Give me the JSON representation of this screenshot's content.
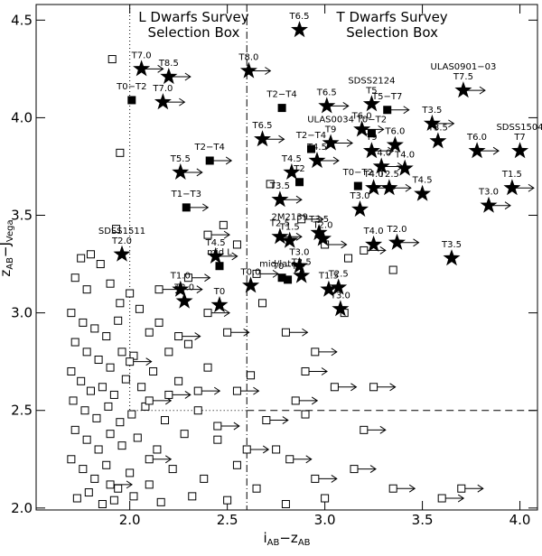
{
  "chart_data": {
    "type": "scatter",
    "xlabel": [
      "i",
      "AB",
      "−z",
      "AB"
    ],
    "ylabel": [
      "z",
      "AB",
      "−J",
      "Vega"
    ],
    "xlim": [
      1.52,
      4.09
    ],
    "ylim": [
      1.99,
      4.58
    ],
    "xticks": [
      {
        "value": 2.0,
        "label": "2.0"
      },
      {
        "value": 2.5,
        "label": "2.5"
      },
      {
        "value": 3.0,
        "label": "3.0"
      },
      {
        "value": 3.5,
        "label": "3.5"
      },
      {
        "value": 4.0,
        "label": "4.0"
      }
    ],
    "yticks": [
      {
        "value": 2.0,
        "label": "2.0"
      },
      {
        "value": 2.5,
        "label": "2.5"
      },
      {
        "value": 3.0,
        "label": "3.0"
      },
      {
        "value": 3.5,
        "label": "3.5"
      },
      {
        "value": 4.0,
        "label": "4.0"
      },
      {
        "value": 4.5,
        "label": "4.5"
      }
    ],
    "l_box": {
      "label": [
        "L Dwarfs Survey",
        "Selection Box"
      ],
      "x": 2.0,
      "y": 2.5
    },
    "t_box": {
      "label": [
        "T Dwarfs Survey",
        "Selection Box"
      ],
      "x": 2.6,
      "y": 2.5
    },
    "series": [
      {
        "marker": "open-square",
        "lower_limit": false,
        "x": [
          1.91,
          1.95,
          1.93,
          1.75,
          1.8,
          1.85,
          1.72,
          1.78,
          1.9,
          1.95,
          2.0,
          2.05,
          1.7,
          1.76,
          1.82,
          1.88,
          1.94,
          2.1,
          2.15,
          1.72,
          1.78,
          1.84,
          1.9,
          1.96,
          2.02,
          2.2,
          2.3,
          1.7,
          1.75,
          1.8,
          1.86,
          1.92,
          1.98,
          2.06,
          2.12,
          2.25,
          2.4,
          1.71,
          1.77,
          1.83,
          1.89,
          1.95,
          2.01,
          2.08,
          2.18,
          2.35,
          1.72,
          1.78,
          1.84,
          1.9,
          1.96,
          2.04,
          2.14,
          2.28,
          2.45,
          1.7,
          1.76,
          1.82,
          1.88,
          1.94,
          2.0,
          2.1,
          2.22,
          2.38,
          2.55,
          1.73,
          1.79,
          1.86,
          1.92,
          2.02,
          2.16,
          2.32,
          2.5,
          2.65,
          2.75,
          2.9,
          2.72,
          2.68,
          3.12,
          3.35,
          2.55,
          2.48,
          2.8,
          3.0,
          3.1,
          2.62
        ],
        "values": [
          4.3,
          3.82,
          3.43,
          3.28,
          3.3,
          3.25,
          3.18,
          3.12,
          3.15,
          3.05,
          3.1,
          3.02,
          3.0,
          2.95,
          2.92,
          2.88,
          2.96,
          2.9,
          2.95,
          2.85,
          2.8,
          2.76,
          2.72,
          2.8,
          2.78,
          2.8,
          2.84,
          2.7,
          2.65,
          2.6,
          2.62,
          2.58,
          2.66,
          2.62,
          2.7,
          2.65,
          2.72,
          2.55,
          2.5,
          2.46,
          2.52,
          2.44,
          2.48,
          2.52,
          2.45,
          2.5,
          2.4,
          2.35,
          2.3,
          2.38,
          2.32,
          2.36,
          2.3,
          2.38,
          2.35,
          2.25,
          2.2,
          2.15,
          2.22,
          2.1,
          2.18,
          2.12,
          2.2,
          2.15,
          2.22,
          2.05,
          2.08,
          2.02,
          2.04,
          2.06,
          2.03,
          2.06,
          2.04,
          2.1,
          2.3,
          2.48,
          3.66,
          3.05,
          3.28,
          3.22,
          3.35,
          3.45,
          2.02,
          2.05,
          3.0,
          2.68
        ]
      },
      {
        "marker": "open-square",
        "lower_limit": true,
        "x": [
          2.3,
          2.15,
          2.4,
          2.25,
          2.5,
          2.35,
          2.1,
          2.45,
          2.2,
          2.55,
          2.7,
          2.85,
          2.95,
          2.8,
          3.05,
          2.9,
          3.2,
          3.25,
          3.15,
          3.35,
          3.6,
          3.7,
          2.6,
          2.82,
          2.95,
          3.0,
          3.2,
          2.88,
          2.4,
          2.1,
          1.9,
          2.0,
          2.65
        ],
        "values": [
          3.18,
          3.12,
          3.0,
          2.88,
          2.9,
          2.6,
          2.55,
          2.42,
          2.58,
          2.6,
          2.45,
          2.55,
          2.8,
          2.9,
          2.62,
          2.7,
          2.4,
          2.62,
          2.2,
          2.1,
          2.05,
          2.1,
          2.3,
          2.25,
          2.15,
          3.35,
          3.32,
          3.48,
          3.4,
          2.25,
          2.12,
          2.75,
          3.2
        ]
      },
      {
        "marker": "filled-square",
        "lower_limit": false,
        "x": [
          2.01,
          2.78,
          3.24,
          2.93,
          3.17,
          2.87,
          2.46,
          2.78,
          2.81
        ],
        "values": [
          4.09,
          4.05,
          3.92,
          3.84,
          3.65,
          3.67,
          3.24,
          3.18,
          3.17
        ],
        "labels": [
          "T0−T2",
          "T2−T4",
          "T0−T2",
          "T2−T4",
          "T0−T2",
          "T2",
          "mid L",
          "mid/late L",
          "T0−T1"
        ]
      },
      {
        "marker": "filled-square",
        "lower_limit": true,
        "x": [
          3.32,
          2.41,
          2.29
        ],
        "values": [
          4.04,
          3.78,
          3.54
        ],
        "labels": [
          "T5−T7",
          "T2−T4",
          "T1−T3"
        ]
      },
      {
        "marker": "star",
        "lower_limit": true,
        "x": [
          2.06,
          2.2,
          2.17,
          2.61,
          3.71,
          3.01,
          3.55,
          2.68,
          3.03,
          3.19,
          3.24,
          3.78,
          2.26,
          2.96,
          3.29,
          3.25,
          3.33,
          3.96,
          3.84,
          2.77,
          2.77,
          3.37,
          2.44,
          2.26
        ],
        "values": [
          4.25,
          4.21,
          4.08,
          4.24,
          4.14,
          4.06,
          3.97,
          3.89,
          3.87,
          3.94,
          3.83,
          3.83,
          3.72,
          3.78,
          3.75,
          3.64,
          3.64,
          3.64,
          3.55,
          3.58,
          3.39,
          3.36,
          3.29,
          3.12
        ],
        "labels": [
          "T7.0",
          "T8.5",
          "T7.0",
          "T8.0",
          [
            "ULAS0901−03",
            "T7.5"
          ],
          "T6.5",
          "T3.5",
          "T6.5",
          [
            "ULAS0034",
            "T9"
          ],
          "T6.0",
          "T9",
          "T6.0",
          "T5.5",
          "T4.5",
          "T4.0",
          "T4.0",
          "T2.5",
          "T1.5",
          "T3.0",
          "T3.5",
          "T2.5",
          "T2.0",
          "T4.5",
          "T1.0"
        ]
      },
      {
        "marker": "star",
        "lower_limit": false,
        "x": [
          2.87,
          3.24,
          3.36,
          3.58,
          4.0,
          3.41,
          2.83,
          3.5,
          3.18,
          2.97,
          2.99,
          3.25,
          3.65,
          2.82,
          1.96,
          2.87,
          2.88,
          2.28,
          2.46,
          2.62,
          3.02,
          3.07,
          3.08
        ],
        "values": [
          4.45,
          4.07,
          3.86,
          3.88,
          3.83,
          3.74,
          3.72,
          3.61,
          3.53,
          3.41,
          3.38,
          3.35,
          3.28,
          3.37,
          3.3,
          3.24,
          3.19,
          3.06,
          3.04,
          3.14,
          3.12,
          3.13,
          3.02
        ],
        "labels": [
          "T6.5",
          [
            "SDSS2124",
            "T5"
          ],
          "T6.0",
          "T3.5",
          [
            "SDSS1504",
            "T7"
          ],
          "T4.0",
          "T4.5",
          "T4.5",
          "T3.0",
          "T3.5",
          "T2.0",
          "T4.0",
          "T3.5",
          [
            "2M2139",
            "T1.5"
          ],
          [
            "SDSS1511",
            "T2.0"
          ],
          "T3.0",
          "T2.5",
          "T2.0",
          "T0",
          "T0.0",
          "T1.5",
          "T2.5",
          "T3.0"
        ]
      }
    ]
  }
}
